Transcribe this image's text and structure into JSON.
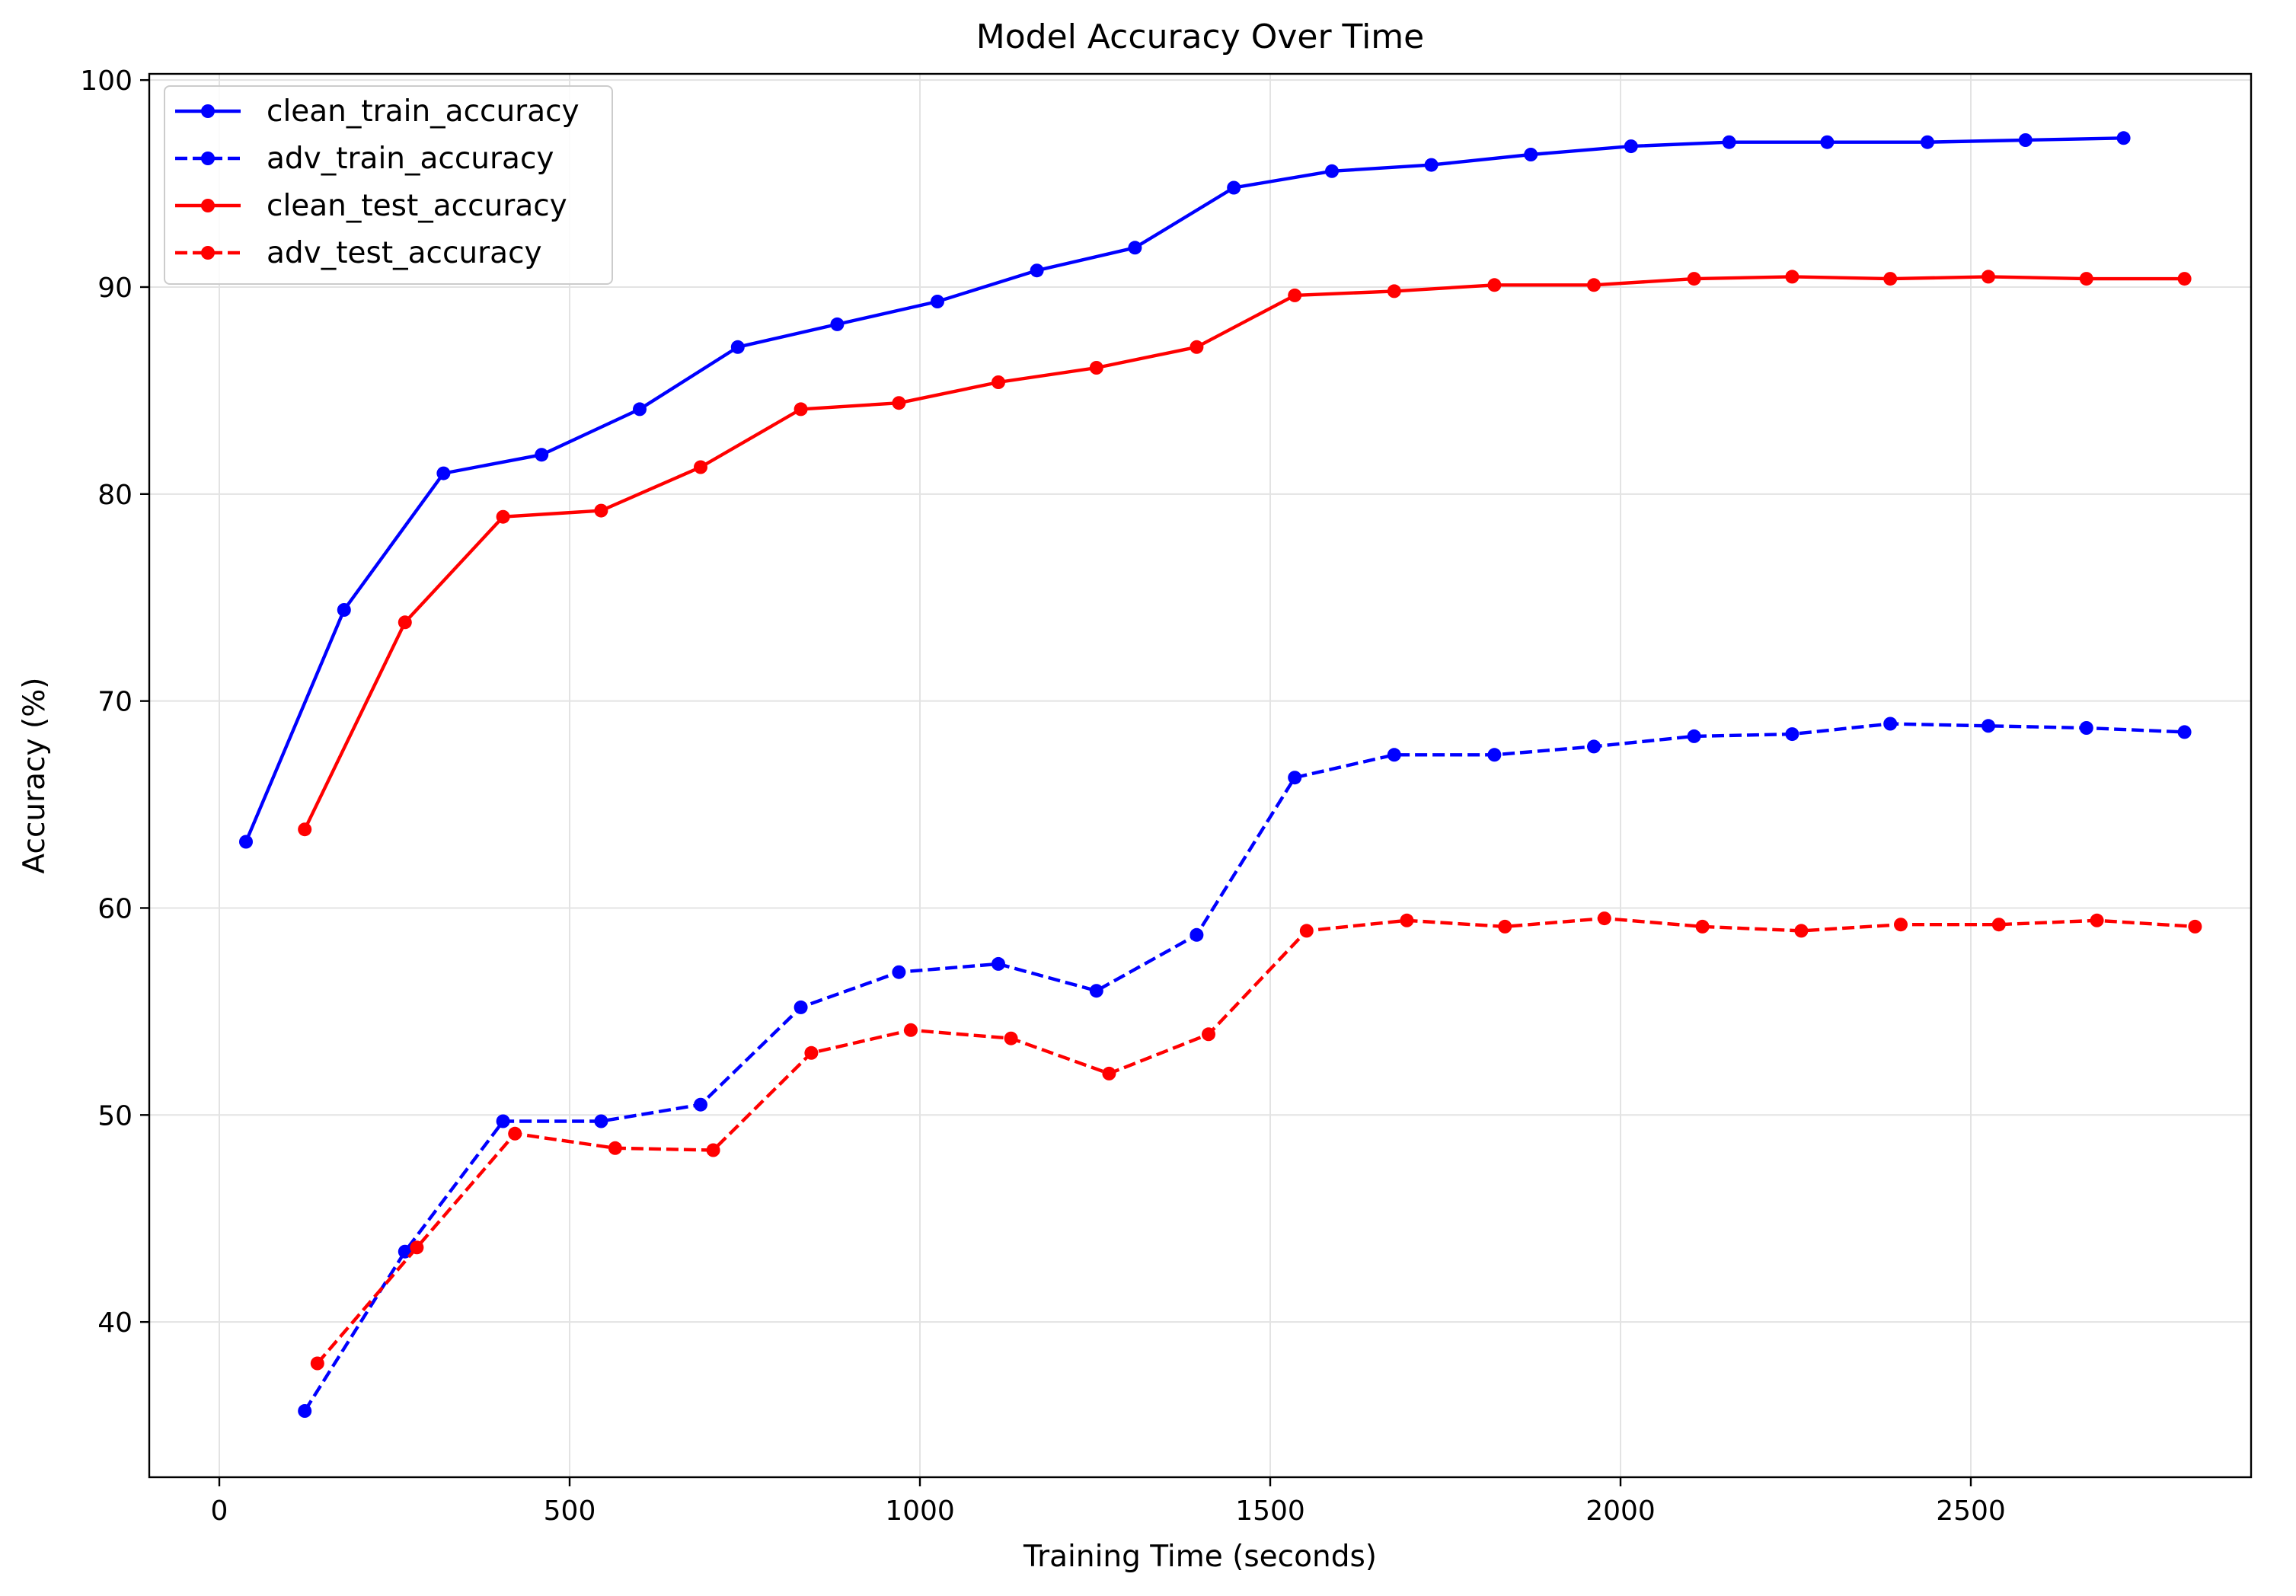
{
  "chart_data": {
    "type": "line",
    "title": "Model Accuracy Over Time",
    "xlabel": "Training Time (seconds)",
    "ylabel": "Accuracy (%)",
    "xlim": [
      -100,
      2900
    ],
    "ylim": [
      32.5,
      100.3
    ],
    "xticks": [
      0,
      500,
      1000,
      1500,
      2000,
      2500
    ],
    "yticks": [
      40,
      50,
      60,
      70,
      80,
      90,
      100
    ],
    "grid": true,
    "legend_position": "upper-left",
    "series": [
      {
        "name": "clean_train_accuracy",
        "color": "#0000ff",
        "dash": "solid",
        "points": [
          [
            38,
            63.2
          ],
          [
            178,
            74.4
          ],
          [
            320,
            81.0
          ],
          [
            460,
            81.9
          ],
          [
            600,
            84.1
          ],
          [
            740,
            87.1
          ],
          [
            882,
            88.2
          ],
          [
            1025,
            89.3
          ],
          [
            1167,
            90.8
          ],
          [
            1307,
            91.9
          ],
          [
            1448,
            94.8
          ],
          [
            1588,
            95.6
          ],
          [
            1730,
            95.9
          ],
          [
            1872,
            96.4
          ],
          [
            2015,
            96.8
          ],
          [
            2155,
            97.0
          ],
          [
            2295,
            97.0
          ],
          [
            2438,
            97.0
          ],
          [
            2578,
            97.1
          ],
          [
            2718,
            97.2
          ]
        ]
      },
      {
        "name": "adv_train_accuracy",
        "color": "#0000ff",
        "dash": "dashed",
        "points": [
          [
            122,
            35.7
          ],
          [
            265,
            43.4
          ],
          [
            405,
            49.7
          ],
          [
            545,
            49.7
          ],
          [
            687,
            50.5
          ],
          [
            830,
            55.2
          ],
          [
            970,
            56.9
          ],
          [
            1112,
            57.3
          ],
          [
            1252,
            56.0
          ],
          [
            1395,
            58.7
          ],
          [
            1535,
            66.3
          ],
          [
            1677,
            67.4
          ],
          [
            1820,
            67.4
          ],
          [
            1962,
            67.8
          ],
          [
            2105,
            68.3
          ],
          [
            2245,
            68.4
          ],
          [
            2385,
            68.9
          ],
          [
            2525,
            68.8
          ],
          [
            2665,
            68.7
          ],
          [
            2805,
            68.5
          ]
        ]
      },
      {
        "name": "clean_test_accuracy",
        "color": "#ff0000",
        "dash": "solid",
        "points": [
          [
            122,
            63.8
          ],
          [
            265,
            73.8
          ],
          [
            405,
            78.9
          ],
          [
            545,
            79.2
          ],
          [
            687,
            81.3
          ],
          [
            830,
            84.1
          ],
          [
            970,
            84.4
          ],
          [
            1112,
            85.4
          ],
          [
            1252,
            86.1
          ],
          [
            1395,
            87.1
          ],
          [
            1535,
            89.6
          ],
          [
            1677,
            89.8
          ],
          [
            1820,
            90.1
          ],
          [
            1962,
            90.1
          ],
          [
            2105,
            90.4
          ],
          [
            2245,
            90.5
          ],
          [
            2385,
            90.4
          ],
          [
            2525,
            90.5
          ],
          [
            2665,
            90.4
          ],
          [
            2805,
            90.4
          ]
        ]
      },
      {
        "name": "adv_test_accuracy",
        "color": "#ff0000",
        "dash": "dashed",
        "points": [
          [
            140,
            38.0
          ],
          [
            282,
            43.6
          ],
          [
            422,
            49.1
          ],
          [
            565,
            48.4
          ],
          [
            705,
            48.3
          ],
          [
            845,
            53.0
          ],
          [
            987,
            54.1
          ],
          [
            1130,
            53.7
          ],
          [
            1270,
            52.0
          ],
          [
            1412,
            53.9
          ],
          [
            1552,
            58.9
          ],
          [
            1695,
            59.4
          ],
          [
            1835,
            59.1
          ],
          [
            1977,
            59.5
          ],
          [
            2117,
            59.1
          ],
          [
            2258,
            58.9
          ],
          [
            2400,
            59.2
          ],
          [
            2540,
            59.2
          ],
          [
            2680,
            59.4
          ],
          [
            2820,
            59.1
          ]
        ]
      }
    ]
  }
}
